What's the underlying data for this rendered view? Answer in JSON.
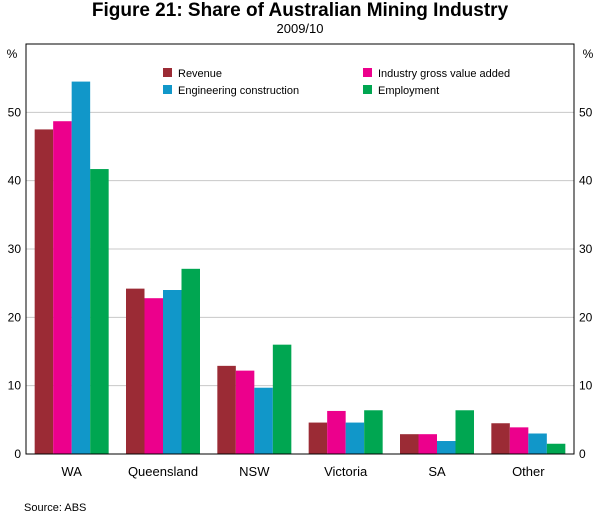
{
  "chart_data": {
    "type": "bar",
    "title": "Figure 21: Share of Australian Mining Industry",
    "subtitle": "2009/10",
    "ylabel_left": "%",
    "ylabel_right": "%",
    "ylim": [
      0,
      60
    ],
    "yticks": [
      0,
      10,
      20,
      30,
      40,
      50
    ],
    "categories": [
      "WA",
      "Queensland",
      "NSW",
      "Victoria",
      "SA",
      "Other"
    ],
    "series": [
      {
        "name": "Revenue",
        "color": "#9B2B35",
        "values": [
          47.5,
          24.2,
          12.9,
          4.6,
          2.9,
          4.5
        ]
      },
      {
        "name": "Industry gross value added",
        "color": "#EC008C",
        "values": [
          48.7,
          22.8,
          12.2,
          6.3,
          2.9,
          3.9
        ]
      },
      {
        "name": "Engineering construction",
        "color": "#1197C9",
        "values": [
          54.5,
          24.0,
          9.7,
          4.6,
          1.9,
          3.0
        ]
      },
      {
        "name": "Employment",
        "color": "#00A651",
        "values": [
          41.7,
          27.1,
          16.0,
          6.4,
          6.4,
          1.5
        ]
      }
    ],
    "legend_position": "top-right",
    "source": "Source: ABS"
  }
}
